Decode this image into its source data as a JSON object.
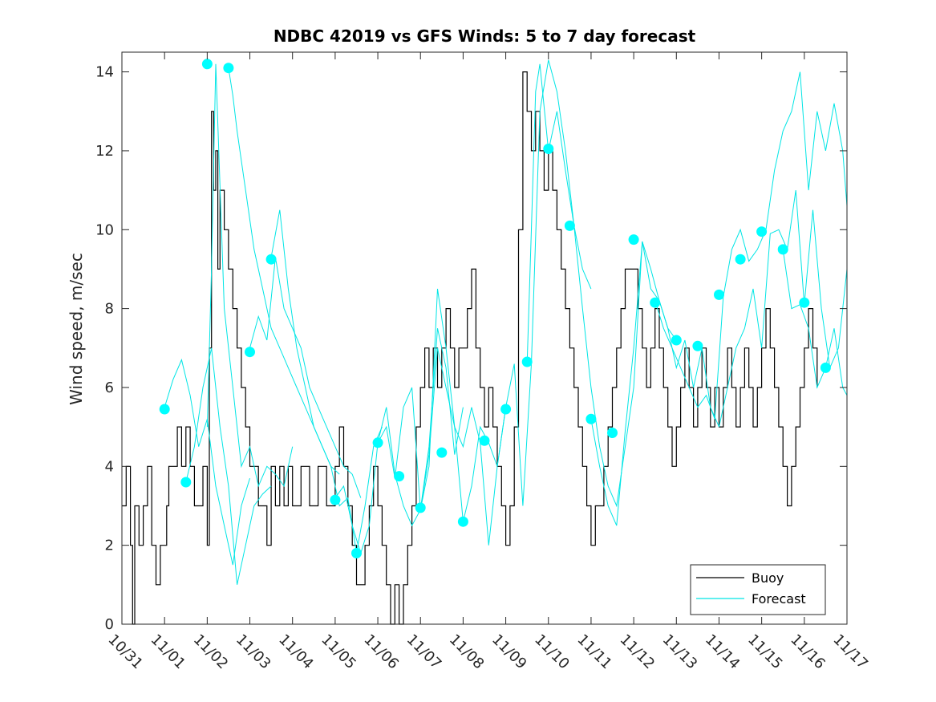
{
  "chart_data": {
    "type": "line",
    "title": "NDBC 42019 vs GFS Winds: 5 to 7 day forecast",
    "xlabel": "",
    "ylabel": "Wind speed, m/sec",
    "xlim": [
      0,
      17
    ],
    "ylim": [
      0,
      14.5
    ],
    "x_tick_values": [
      0,
      1,
      2,
      3,
      4,
      5,
      6,
      7,
      8,
      9,
      10,
      11,
      12,
      13,
      14,
      15,
      16,
      17
    ],
    "x_tick_labels": [
      "10/31",
      "11/01",
      "11/02",
      "11/03",
      "11/04",
      "11/05",
      "11/06",
      "11/07",
      "11/08",
      "11/09",
      "11/10",
      "11/11",
      "11/12",
      "11/13",
      "11/14",
      "11/15",
      "11/16",
      "11/17"
    ],
    "y_ticks": [
      0,
      2,
      4,
      6,
      8,
      10,
      12,
      14
    ],
    "legend": {
      "position": "bottom-right",
      "entries": [
        {
          "label": "Buoy",
          "color": "#000000"
        },
        {
          "label": "Forecast",
          "color": "#00e5e5"
        }
      ]
    },
    "colors": {
      "buoy": "#000000",
      "forecast": "#00e5e5",
      "markers": "#00ffff"
    },
    "series": [
      {
        "name": "Buoy",
        "style": "step",
        "x": [
          0,
          0.1,
          0.2,
          0.25,
          0.3,
          0.4,
          0.5,
          0.6,
          0.7,
          0.8,
          0.9,
          1.0,
          1.05,
          1.1,
          1.2,
          1.3,
          1.4,
          1.5,
          1.6,
          1.7,
          1.8,
          1.9,
          2.0,
          2.05,
          2.1,
          2.15,
          2.2,
          2.25,
          2.3,
          2.4,
          2.5,
          2.6,
          2.7,
          2.8,
          2.9,
          3.0,
          3.1,
          3.2,
          3.3,
          3.4,
          3.5,
          3.6,
          3.7,
          3.8,
          3.9,
          4.0,
          4.2,
          4.4,
          4.6,
          4.8,
          5.0,
          5.1,
          5.2,
          5.3,
          5.4,
          5.5,
          5.6,
          5.7,
          5.8,
          5.9,
          6.0,
          6.1,
          6.2,
          6.3,
          6.4,
          6.5,
          6.6,
          6.7,
          6.8,
          6.9,
          7.0,
          7.1,
          7.2,
          7.3,
          7.4,
          7.5,
          7.6,
          7.7,
          7.8,
          7.9,
          8.0,
          8.1,
          8.2,
          8.3,
          8.4,
          8.5,
          8.6,
          8.7,
          8.8,
          8.9,
          9.0,
          9.1,
          9.2,
          9.3,
          9.4,
          9.5,
          9.6,
          9.7,
          9.8,
          9.9,
          10.0,
          10.1,
          10.2,
          10.3,
          10.4,
          10.5,
          10.6,
          10.7,
          10.8,
          10.9,
          11.0,
          11.1,
          11.2,
          11.3,
          11.4,
          11.5,
          11.6,
          11.7,
          11.8,
          11.9,
          12.0,
          12.1,
          12.2,
          12.3,
          12.4,
          12.5,
          12.6,
          12.7,
          12.8,
          12.9,
          13.0,
          13.1,
          13.2,
          13.3,
          13.4,
          13.5,
          13.6,
          13.7,
          13.8,
          13.9,
          14.0,
          14.1,
          14.2,
          14.3,
          14.4,
          14.5,
          14.6,
          14.7,
          14.8,
          14.9,
          15.0,
          15.1,
          15.2,
          15.3,
          15.4,
          15.5,
          15.6,
          15.7,
          15.8,
          15.9,
          16.0,
          16.1,
          16.2,
          16.3
        ],
        "y": [
          3,
          4,
          2,
          0,
          3,
          2,
          3,
          4,
          2,
          1,
          2,
          2,
          3,
          4,
          4,
          5,
          4,
          5,
          4,
          3,
          3,
          4,
          2,
          7,
          13,
          11,
          12,
          9,
          11,
          10,
          9,
          8,
          7,
          6,
          5,
          4,
          4,
          3,
          3,
          2,
          4,
          3,
          4,
          3,
          4,
          3,
          4,
          3,
          4,
          3,
          4,
          5,
          4,
          3,
          2,
          1,
          1,
          2,
          3,
          4,
          3,
          2,
          1,
          0,
          1,
          0,
          1,
          2,
          3,
          5,
          6,
          7,
          6,
          7,
          6,
          7,
          8,
          7,
          6,
          7,
          7,
          8,
          9,
          7,
          6,
          5,
          6,
          5,
          4,
          3,
          2,
          3,
          5,
          10,
          14,
          13,
          12,
          13,
          12,
          11,
          12,
          11,
          10,
          9,
          8,
          7,
          6,
          5,
          4,
          3,
          2,
          3,
          3,
          4,
          5,
          6,
          7,
          8,
          9,
          9,
          9,
          8,
          7,
          6,
          7,
          8,
          7,
          6,
          5,
          4,
          5,
          6,
          7,
          6,
          5,
          6,
          7,
          6,
          5,
          6,
          5,
          6,
          7,
          6,
          5,
          6,
          7,
          6,
          5,
          6,
          7,
          8,
          7,
          6,
          5,
          4,
          3,
          4,
          5,
          6,
          7,
          8,
          7,
          6
        ]
      },
      {
        "name": "Forecast",
        "style": "line",
        "runs": [
          {
            "x": [
              1.0,
              1.2,
              1.4,
              1.6,
              1.8,
              2.0,
              2.2,
              2.4,
              2.6,
              2.8,
              3.0
            ],
            "y": [
              5.5,
              6.2,
              6.7,
              5.8,
              4.5,
              5.2,
              3.5,
              2.5,
              1.5,
              3.0,
              3.7
            ]
          },
          {
            "x": [
              1.5,
              1.7,
              1.9,
              2.1,
              2.3,
              2.5,
              2.7,
              2.9,
              3.1,
              3.3,
              3.5
            ],
            "y": [
              3.6,
              4.5,
              6.0,
              7.0,
              5.0,
              3.5,
              1.0,
              2.0,
              3.0,
              3.3,
              3.5
            ]
          },
          {
            "x": [
              2.0,
              2.1,
              2.2,
              2.4,
              2.6,
              2.8,
              3.0,
              3.2,
              3.4,
              3.6,
              3.8,
              4.0
            ],
            "y": [
              5.0,
              9.0,
              14.2,
              8.0,
              6.0,
              4.0,
              4.5,
              3.5,
              4.0,
              3.8,
              3.5,
              4.5
            ]
          },
          {
            "x": [
              2.5,
              2.6,
              2.7,
              2.9,
              3.1,
              3.3,
              3.5,
              3.7,
              3.9,
              4.1,
              4.3,
              4.5,
              4.7,
              4.9,
              5.1
            ],
            "y": [
              14.1,
              13.4,
              12.5,
              11.0,
              9.5,
              8.5,
              7.5,
              7.0,
              6.5,
              6.0,
              5.5,
              5.0,
              4.5,
              4.0,
              3.8
            ]
          },
          {
            "x": [
              3.0,
              3.2,
              3.4,
              3.6,
              3.8,
              4.0,
              4.2,
              4.4,
              4.6,
              4.8,
              5.0,
              5.2,
              5.4,
              5.6
            ],
            "y": [
              7.0,
              7.8,
              7.2,
              9.3,
              8.0,
              7.5,
              7.0,
              6.0,
              5.5,
              5.0,
              4.5,
              4.0,
              3.8,
              3.2
            ]
          },
          {
            "x": [
              3.5,
              3.7,
              3.9,
              4.1,
              4.3,
              4.5,
              4.7,
              4.9,
              5.1,
              5.3,
              5.5,
              5.7,
              5.9,
              6.1
            ],
            "y": [
              9.3,
              10.5,
              8.5,
              7.0,
              6.0,
              5.0,
              4.5,
              4.0,
              3.0,
              3.2,
              1.8,
              3.0,
              4.5,
              5.0
            ]
          },
          {
            "x": [
              5.0,
              5.2,
              5.4,
              5.6,
              5.8,
              6.0,
              6.2,
              6.4,
              6.6,
              6.8,
              7.0,
              7.2,
              7.4,
              7.6,
              7.8,
              8.0
            ],
            "y": [
              3.2,
              3.5,
              2.5,
              1.8,
              2.5,
              4.6,
              5.5,
              3.8,
              3.0,
              2.5,
              2.9,
              4.5,
              7.5,
              6.5,
              4.3,
              5.5
            ]
          },
          {
            "x": [
              6.0,
              6.2,
              6.4,
              6.6,
              6.8,
              7.0,
              7.2,
              7.4,
              7.6,
              7.8,
              8.0,
              8.2,
              8.4,
              8.6,
              8.8,
              9.0
            ],
            "y": [
              4.6,
              5.0,
              3.7,
              5.5,
              6.0,
              2.9,
              4.0,
              8.5,
              7.0,
              5.0,
              2.6,
              3.5,
              5.0,
              4.6,
              4.0,
              5.5
            ]
          },
          {
            "x": [
              7.0,
              7.2,
              7.4,
              7.6,
              7.8,
              8.0,
              8.2,
              8.4,
              8.6,
              8.8,
              9.0,
              9.2,
              9.4,
              9.6,
              9.8,
              10.0,
              10.2,
              10.4,
              10.6,
              10.8,
              11.0
            ],
            "y": [
              2.9,
              4.3,
              7.0,
              6.0,
              5.0,
              4.5,
              5.5,
              4.6,
              2.0,
              4.0,
              5.5,
              6.6,
              3.0,
              6.6,
              13.0,
              14.3,
              13.5,
              12.0,
              10.1,
              9.0,
              8.5
            ]
          },
          {
            "x": [
              9.5,
              9.6,
              9.7,
              9.8,
              10.0,
              10.2,
              10.4,
              10.6,
              10.8,
              11.0,
              11.2,
              11.4,
              11.6,
              11.8,
              12.0,
              12.2,
              12.4,
              12.6,
              12.8,
              13.0
            ],
            "y": [
              6.6,
              10.0,
              13.5,
              14.2,
              12.0,
              13.0,
              11.5,
              10.1,
              8.0,
              6.0,
              4.5,
              3.5,
              3.0,
              4.5,
              6.0,
              9.7,
              8.5,
              8.2,
              7.5,
              7.2
            ]
          },
          {
            "x": [
              11.0,
              11.2,
              11.4,
              11.6,
              11.8,
              12.0,
              12.2,
              12.4,
              12.6,
              12.8,
              13.0,
              13.2,
              13.4,
              13.6,
              13.8,
              14.0
            ],
            "y": [
              5.2,
              4.0,
              3.0,
              2.5,
              4.9,
              7.0,
              9.7,
              9.0,
              8.2,
              7.5,
              6.5,
              7.2,
              6.0,
              7.0,
              5.5,
              5.0
            ]
          },
          {
            "x": [
              12.5,
              12.7,
              12.9,
              13.1,
              13.3,
              13.5,
              13.7,
              13.9,
              14.1,
              14.3,
              14.5,
              14.7,
              14.9,
              15.1,
              15.3,
              15.5,
              15.7,
              15.9,
              16.1,
              16.3,
              16.5,
              16.7,
              16.9,
              17.0
            ],
            "y": [
              8.2,
              7.5,
              7.0,
              6.5,
              6.0,
              5.5,
              5.8,
              5.2,
              8.3,
              9.5,
              10.0,
              9.2,
              9.5,
              10.0,
              11.5,
              12.5,
              13.0,
              14.0,
              11.0,
              13.0,
              12.0,
              13.2,
              12.0,
              10.6
            ]
          },
          {
            "x": [
              14.0,
              14.2,
              14.4,
              14.6,
              14.8,
              15.0,
              15.2,
              15.4,
              15.6,
              15.8,
              16.0,
              16.2,
              16.4,
              16.6,
              16.8,
              17.0
            ],
            "y": [
              5.0,
              6.0,
              7.0,
              7.5,
              8.5,
              7.0,
              9.9,
              10.0,
              9.5,
              11.0,
              8.1,
              10.5,
              8.0,
              6.5,
              7.0,
              9.0
            ]
          },
          {
            "x": [
              15.5,
              15.7,
              15.9,
              16.1,
              16.3,
              16.5,
              16.7,
              16.9,
              17.0
            ],
            "y": [
              9.5,
              8.0,
              8.1,
              7.5,
              6.0,
              6.5,
              7.5,
              6.0,
              5.8
            ]
          }
        ]
      },
      {
        "name": "Forecast markers",
        "style": "markers",
        "x": [
          1.0,
          1.5,
          2.0,
          2.5,
          3.0,
          3.5,
          5.0,
          5.5,
          6.0,
          6.5,
          7.0,
          7.5,
          8.0,
          8.5,
          9.0,
          9.5,
          10.0,
          10.5,
          11.0,
          11.5,
          12.0,
          12.5,
          13.0,
          13.5,
          14.0,
          14.5,
          15.0,
          15.5,
          16.0,
          16.5
        ],
        "y": [
          5.45,
          3.6,
          14.2,
          14.1,
          6.9,
          9.25,
          3.15,
          1.8,
          4.6,
          3.75,
          2.95,
          4.35,
          2.6,
          4.65,
          5.45,
          6.65,
          12.05,
          10.1,
          5.2,
          4.85,
          9.75,
          8.15,
          7.2,
          7.05,
          8.35,
          9.25,
          9.95,
          9.5,
          8.15,
          6.5
        ]
      }
    ]
  }
}
